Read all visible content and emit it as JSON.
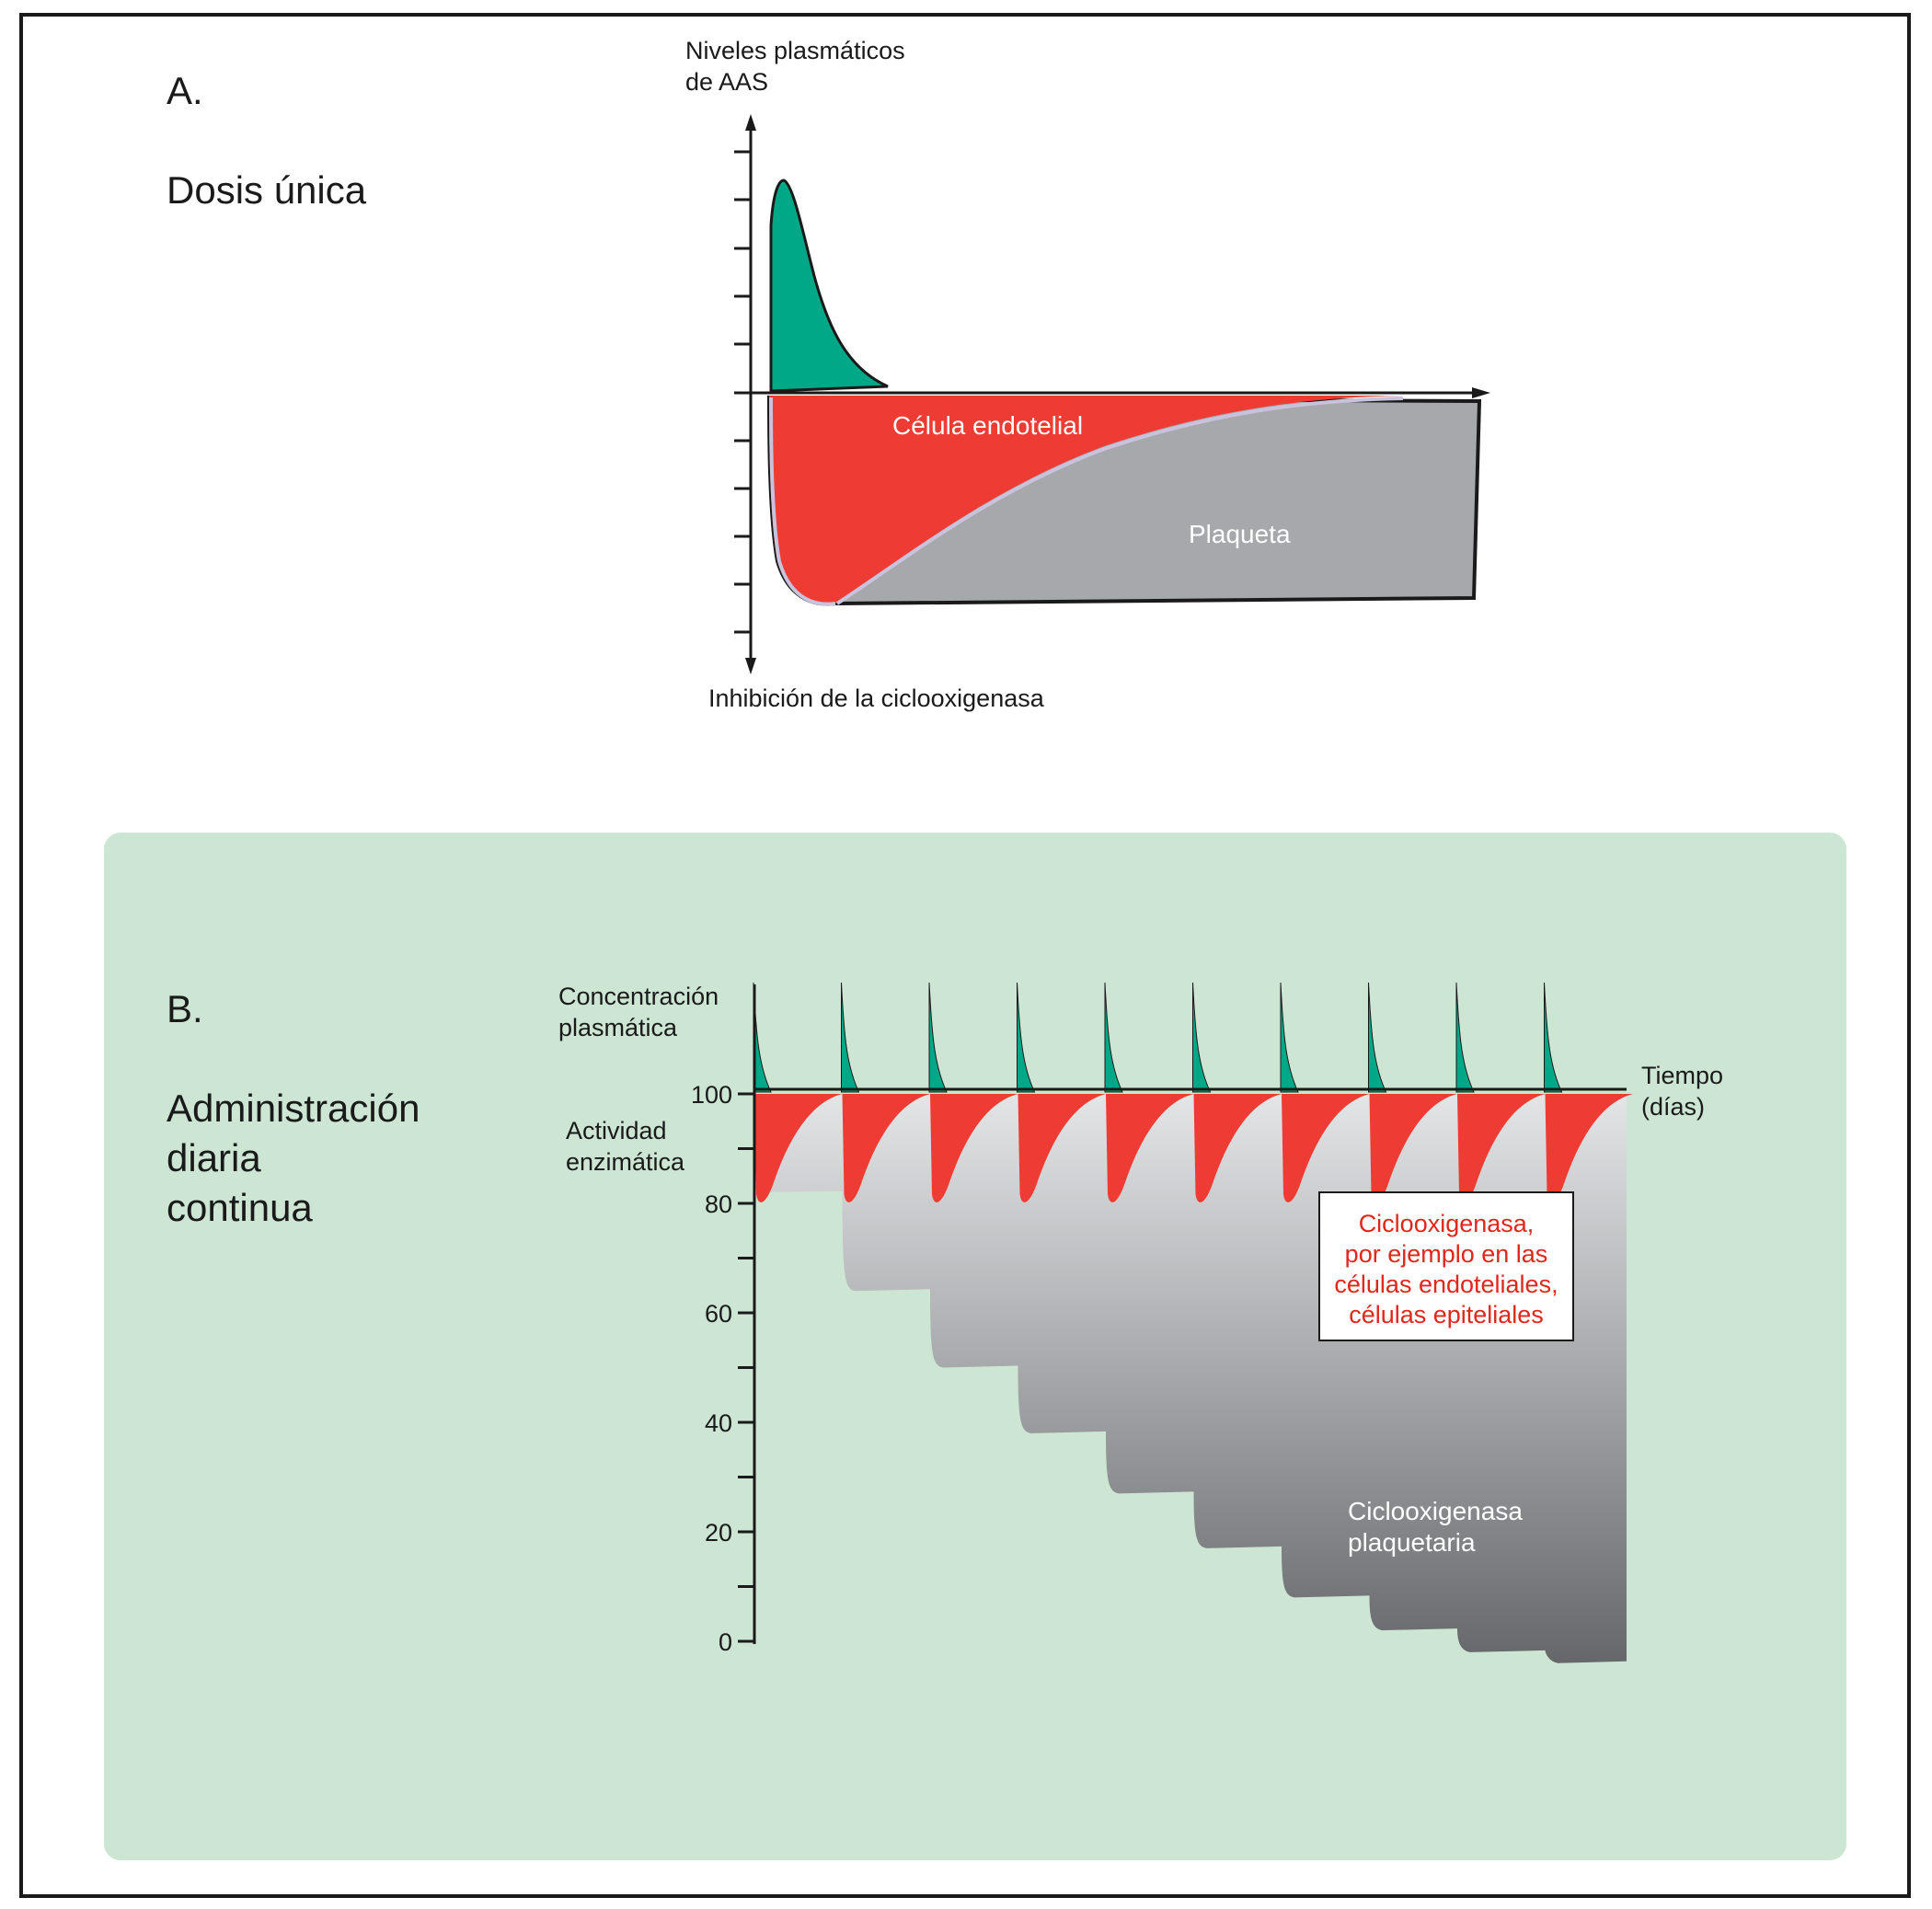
{
  "colors": {
    "green_peak": "#00a887",
    "red_endothelial": "#ee3b33",
    "gray_platelet": "#a7a8ac",
    "panel_b_background": "#cde6d4",
    "frame": "#1a1a1a",
    "callout_text": "#e1261c",
    "inside_label": "#ffffff"
  },
  "panel_a": {
    "letter": "A.",
    "title": "Dosis única",
    "y_axis_top_label_line1": "Niveles plasmáticos",
    "y_axis_top_label_line2": "de AAS",
    "y_axis_bottom_label": "Inhibición de la ciclooxigenasa",
    "endothelial_label": "Célula endotelial",
    "platelet_label": "Plaqueta"
  },
  "panel_b": {
    "letter": "B.",
    "title_line1": "Administración",
    "title_line2": "diaria",
    "title_line3": "continua",
    "conc_label_line1": "Concentración",
    "conc_label_line2": "plasmática",
    "activity_label_line1": "Actividad",
    "activity_label_line2": "enzimática",
    "x_axis_label_line1": "Tiempo",
    "x_axis_label_line2": "(días)",
    "callout_line1": "Ciclooxigenasa,",
    "callout_line2": "por ejemplo en las",
    "callout_line3": "células endoteliales,",
    "callout_line4": "células epiteliales",
    "platelet_label_line1": "Ciclooxigenasa",
    "platelet_label_line2": "plaquetaria"
  },
  "chart_data": [
    {
      "type": "area",
      "title": "Dosis única",
      "ylabel_top": "Niveles plasmáticos de AAS",
      "ylabel_bottom": "Inhibición de la ciclooxigenasa",
      "series": [
        {
          "name": "",
          "note_color": "green"
        },
        {
          "name": "Célula endotelial"
        },
        {
          "name": "Plaqueta"
        }
      ]
    },
    {
      "type": "area",
      "title": "Administración diaria continua",
      "ylabel": "Actividad enzimática",
      "xlabel": "Tiempo (días)",
      "ylim": [
        0,
        100
      ],
      "y_ticks": [
        0,
        20,
        40,
        60,
        80,
        100
      ],
      "days": [
        1,
        2,
        3,
        4,
        5,
        6,
        7,
        8,
        9,
        10
      ],
      "series": [
        {
          "name": "Ciclooxigenasa plaquetaria",
          "values": [
            82,
            64,
            50,
            38,
            27,
            17,
            8,
            2,
            -2,
            -4
          ]
        },
        {
          "name": "Ciclooxigenasa, por ejemplo en las células endoteliales, células epiteliales",
          "values": [
            100,
            100,
            100,
            100,
            100,
            100,
            100,
            100,
            100,
            100
          ]
        }
      ]
    }
  ]
}
